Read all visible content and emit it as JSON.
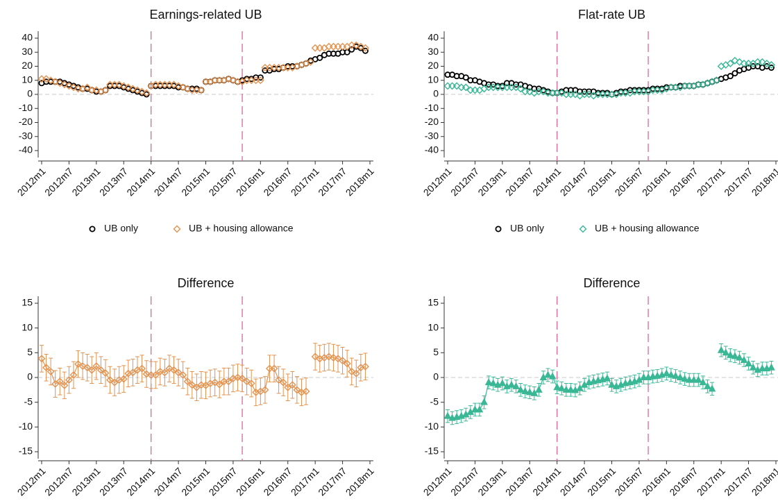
{
  "chart_data": [
    {
      "type": "scatter",
      "title": "Earnings-related UB",
      "categories": [
        "2012m1",
        null,
        null,
        null,
        null,
        null,
        "2012m7",
        null,
        null,
        null,
        null,
        null,
        "2013m1",
        null,
        null,
        null,
        null,
        null,
        "2013m7",
        null,
        null,
        null,
        null,
        null,
        "2014m1",
        null,
        null,
        null,
        null,
        null,
        "2014m7",
        null,
        null,
        null,
        null,
        null,
        "2015m1",
        null,
        null,
        null,
        null,
        null,
        "2015m7",
        null,
        null,
        null,
        null,
        null,
        "2016m1",
        null,
        null,
        null,
        null,
        null,
        "2016m7",
        null,
        null,
        null,
        null,
        null,
        "2017m1",
        null,
        null,
        null,
        null,
        null,
        "2017m7",
        null,
        null,
        null,
        null,
        null,
        "2018m1"
      ],
      "ylim": [
        -40,
        40
      ],
      "yticks": [
        -40,
        -30,
        -20,
        -10,
        0,
        10,
        20,
        30,
        40
      ],
      "hline": 0,
      "vlines": [
        24,
        44
      ],
      "vline_color": "#d9669c",
      "legend": "bottom",
      "series": [
        {
          "name": "UB only",
          "color": "#000000",
          "marker": "circle",
          "values": [
            8,
            9,
            9,
            9,
            9,
            8,
            7,
            6,
            5,
            4,
            4,
            3,
            2,
            2,
            3,
            6,
            6,
            6,
            5,
            4,
            3,
            2,
            1,
            0,
            6,
            6,
            6,
            6,
            6,
            6,
            5,
            5,
            4,
            4,
            4,
            3,
            9,
            9,
            10,
            10,
            10,
            11,
            10,
            9,
            10,
            11,
            11,
            12,
            12,
            17,
            17,
            18,
            18,
            19,
            20,
            20,
            20,
            21,
            22,
            24,
            25,
            26,
            28,
            29,
            29,
            29,
            30,
            30,
            32,
            34,
            33,
            31,
            null
          ]
        },
        {
          "name": "UB + housing allowance",
          "color": "#e3924f",
          "marker": "diamond",
          "values": [
            11,
            11,
            10,
            9,
            8,
            7,
            6,
            5,
            4,
            4,
            5,
            3,
            3,
            2,
            3,
            7,
            7,
            7,
            6,
            5,
            4,
            3,
            2,
            1,
            6,
            7,
            7,
            7,
            7,
            7,
            6,
            5,
            4,
            3,
            3,
            3,
            9,
            9,
            10,
            10,
            10,
            11,
            10,
            9,
            9,
            10,
            10,
            10,
            10,
            19,
            19,
            19,
            19,
            19,
            19,
            19,
            20,
            21,
            22,
            23,
            33,
            33,
            33,
            34,
            34,
            34,
            34,
            34,
            35,
            35,
            34,
            33,
            null
          ]
        }
      ]
    },
    {
      "type": "scatter",
      "title": "Flat-rate UB",
      "categories": [
        "2012m1",
        null,
        null,
        null,
        null,
        null,
        "2012m7",
        null,
        null,
        null,
        null,
        null,
        "2013m1",
        null,
        null,
        null,
        null,
        null,
        "2013m7",
        null,
        null,
        null,
        null,
        null,
        "2014m1",
        null,
        null,
        null,
        null,
        null,
        "2014m7",
        null,
        null,
        null,
        null,
        null,
        "2015m1",
        null,
        null,
        null,
        null,
        null,
        "2015m7",
        null,
        null,
        null,
        null,
        null,
        "2016m1",
        null,
        null,
        null,
        null,
        null,
        "2016m7",
        null,
        null,
        null,
        null,
        null,
        "2017m1",
        null,
        null,
        null,
        null,
        null,
        "2017m7",
        null,
        null,
        null,
        null,
        null,
        "2018m1"
      ],
      "ylim": [
        -40,
        40
      ],
      "yticks": [
        -40,
        -30,
        -20,
        -10,
        0,
        10,
        20,
        30,
        40
      ],
      "hline": 0,
      "vlines": [
        24,
        44
      ],
      "vline_color": "#d9669c",
      "legend": "bottom",
      "series": [
        {
          "name": "UB only",
          "color": "#000000",
          "marker": "circle",
          "values": [
            14,
            14,
            13,
            13,
            12,
            10,
            10,
            9,
            8,
            7,
            7,
            6,
            6,
            8,
            8,
            7,
            7,
            6,
            5,
            4,
            4,
            3,
            2,
            1,
            1,
            2,
            3,
            3,
            3,
            2,
            2,
            2,
            2,
            1,
            1,
            1,
            0,
            1,
            2,
            2,
            3,
            3,
            3,
            3,
            3,
            4,
            4,
            4,
            5,
            5,
            5,
            6,
            6,
            6,
            6,
            7,
            7,
            8,
            9,
            10,
            11,
            12,
            13,
            15,
            17,
            18,
            19,
            20,
            20,
            19,
            20,
            19,
            null
          ]
        },
        {
          "name": "UB + housing allowance",
          "color": "#3ab795",
          "marker": "diamond",
          "values": [
            6,
            6,
            6,
            5,
            5,
            3,
            3,
            3,
            4,
            5,
            5,
            5,
            5,
            5,
            5,
            5,
            4,
            2,
            2,
            1,
            2,
            2,
            1,
            1,
            1,
            1,
            0,
            0,
            0,
            -1,
            0,
            0,
            -1,
            0,
            0,
            0,
            0,
            0,
            1,
            1,
            1,
            2,
            2,
            2,
            2,
            3,
            3,
            3,
            4,
            5,
            5,
            5,
            6,
            6,
            6,
            7,
            7,
            8,
            9,
            10,
            20,
            21,
            22,
            24,
            23,
            22,
            22,
            22,
            23,
            23,
            22,
            21,
            null
          ]
        }
      ]
    },
    {
      "type": "line",
      "title": "Difference",
      "categories": [
        "2012m1",
        null,
        null,
        null,
        null,
        null,
        "2012m7",
        null,
        null,
        null,
        null,
        null,
        "2013m1",
        null,
        null,
        null,
        null,
        null,
        "2013m7",
        null,
        null,
        null,
        null,
        null,
        "2014m1",
        null,
        null,
        null,
        null,
        null,
        "2014m7",
        null,
        null,
        null,
        null,
        null,
        "2015m1",
        null,
        null,
        null,
        null,
        null,
        "2015m7",
        null,
        null,
        null,
        null,
        null,
        "2016m1",
        null,
        null,
        null,
        null,
        null,
        "2016m7",
        null,
        null,
        null,
        null,
        null,
        "2017m1",
        null,
        null,
        null,
        null,
        null,
        "2017m7",
        null,
        null,
        null,
        null,
        null,
        "2018m1"
      ],
      "ylim": [
        -15,
        15
      ],
      "yticks": [
        -15,
        -10,
        -5,
        0,
        5,
        10,
        15
      ],
      "hline": 0,
      "vlines": [
        24,
        44
      ],
      "vline_color": "#d9669c",
      "series": [
        {
          "color": "#e3924f",
          "marker": "diamond",
          "values": [
            3.8,
            2,
            1.2,
            -1.3,
            -0.8,
            -1.6,
            -0.5,
            0.5,
            2.7,
            2.3,
            2,
            1.5,
            2.3,
            1.5,
            0.9,
            -0.5,
            -1,
            -0.5,
            -0.3,
            0.8,
            1,
            1.5,
            1.8,
            0.7,
            0.5,
            0.5,
            1.2,
            1,
            1.8,
            1.5,
            1,
            0.5,
            -0.8,
            -1.5,
            -2,
            -1.5,
            -1.6,
            -1.2,
            -1,
            -1.4,
            -0.8,
            -0.8,
            -0.2,
            0,
            -0.2,
            -0.8,
            -1.2,
            -3,
            -2.8,
            -2.5,
            1.8,
            1.8,
            -0.5,
            -1,
            -2,
            -1.5,
            -2.5,
            -3,
            -2.8,
            null,
            4.2,
            3.8,
            4,
            4.2,
            4,
            3.8,
            3.4,
            2.8,
            1.2,
            0.8,
            2,
            2.2,
            null
          ],
          "errors": [
            2.7,
            2.7,
            2.7,
            2.7,
            2.7,
            2.7,
            2.7,
            2.7,
            2.7,
            2.7,
            2.7,
            2.7,
            2.7,
            2.7,
            2.7,
            2.7,
            2.7,
            2.7,
            2.7,
            2.7,
            2.7,
            2.7,
            2.7,
            2.7,
            2.7,
            2.7,
            2.7,
            2.7,
            2.7,
            2.7,
            2.7,
            2.7,
            2.7,
            2.7,
            2.7,
            2.7,
            2.7,
            2.7,
            2.7,
            2.7,
            2.7,
            2.7,
            2.7,
            2.7,
            2.7,
            2.7,
            2.7,
            2.7,
            2.7,
            2.7,
            2.7,
            2.7,
            2.7,
            2.7,
            2.7,
            2.7,
            2.7,
            2.7,
            2.7,
            null,
            2.7,
            2.7,
            2.7,
            2.7,
            2.7,
            2.7,
            2.7,
            2.7,
            2.7,
            2.7,
            2.7,
            2.7,
            null
          ]
        }
      ]
    },
    {
      "type": "line",
      "title": "Difference",
      "categories": [
        "2012m1",
        null,
        null,
        null,
        null,
        null,
        "2012m7",
        null,
        null,
        null,
        null,
        null,
        "2013m1",
        null,
        null,
        null,
        null,
        null,
        "2013m7",
        null,
        null,
        null,
        null,
        null,
        "2014m1",
        null,
        null,
        null,
        null,
        null,
        "2014m7",
        null,
        null,
        null,
        null,
        null,
        "2015m1",
        null,
        null,
        null,
        null,
        null,
        "2015m7",
        null,
        null,
        null,
        null,
        null,
        "2016m1",
        null,
        null,
        null,
        null,
        null,
        "2016m7",
        null,
        null,
        null,
        null,
        null,
        "2017m1",
        null,
        null,
        null,
        null,
        null,
        "2017m7",
        null,
        null,
        null,
        null,
        null,
        "2018m1"
      ],
      "ylim": [
        -15,
        15
      ],
      "yticks": [
        -15,
        -10,
        -5,
        0,
        5,
        10,
        15
      ],
      "hline": 0,
      "vlines": [
        24,
        44
      ],
      "vline_color": "#d9669c",
      "series": [
        {
          "color": "#3ab795",
          "marker": "triangle",
          "values": [
            -7.8,
            -8.2,
            -8,
            -7.8,
            -7.5,
            -7,
            -6.5,
            -6.5,
            -5,
            -1,
            -1.2,
            -1.5,
            -1.2,
            -1.8,
            -1.5,
            -1.8,
            -2.5,
            -2.8,
            -3,
            -3.2,
            -2.5,
            0,
            0.5,
            0.2,
            -2,
            -2.2,
            -2.5,
            -2.5,
            -2.6,
            -2.2,
            -1.5,
            -1,
            -0.8,
            -0.6,
            -0.4,
            -0.2,
            -1.5,
            -1.8,
            -1.5,
            -1.2,
            -1,
            -0.8,
            -0.5,
            0,
            0,
            0.2,
            0.3,
            0.5,
            0.8,
            0.5,
            0.3,
            0,
            -0.3,
            -0.5,
            -0.5,
            -0.5,
            -1,
            -1.8,
            -2.3,
            null,
            5.5,
            5,
            4.5,
            4.3,
            4,
            3.5,
            2.8,
            2,
            1.5,
            1.8,
            1.8,
            2,
            null
          ],
          "errors": [
            1.3,
            1.3,
            1.3,
            1.3,
            1.3,
            1.3,
            1.3,
            1.3,
            1.3,
            1.3,
            1.3,
            1.3,
            1.3,
            1.3,
            1.3,
            1.3,
            1.3,
            1.3,
            1.3,
            1.3,
            1.3,
            1.3,
            1.3,
            1.3,
            1.3,
            1.3,
            1.3,
            1.3,
            1.3,
            1.3,
            1.3,
            1.3,
            1.3,
            1.3,
            1.3,
            1.3,
            1.3,
            1.3,
            1.3,
            1.3,
            1.3,
            1.3,
            1.3,
            1.3,
            1.3,
            1.3,
            1.3,
            1.3,
            1.3,
            1.3,
            1.3,
            1.3,
            1.3,
            1.3,
            1.3,
            1.3,
            1.3,
            1.3,
            1.3,
            null,
            1.3,
            1.3,
            1.3,
            1.3,
            1.3,
            1.3,
            1.3,
            1.3,
            1.3,
            1.3,
            1.3,
            1.3,
            null
          ]
        }
      ]
    }
  ]
}
